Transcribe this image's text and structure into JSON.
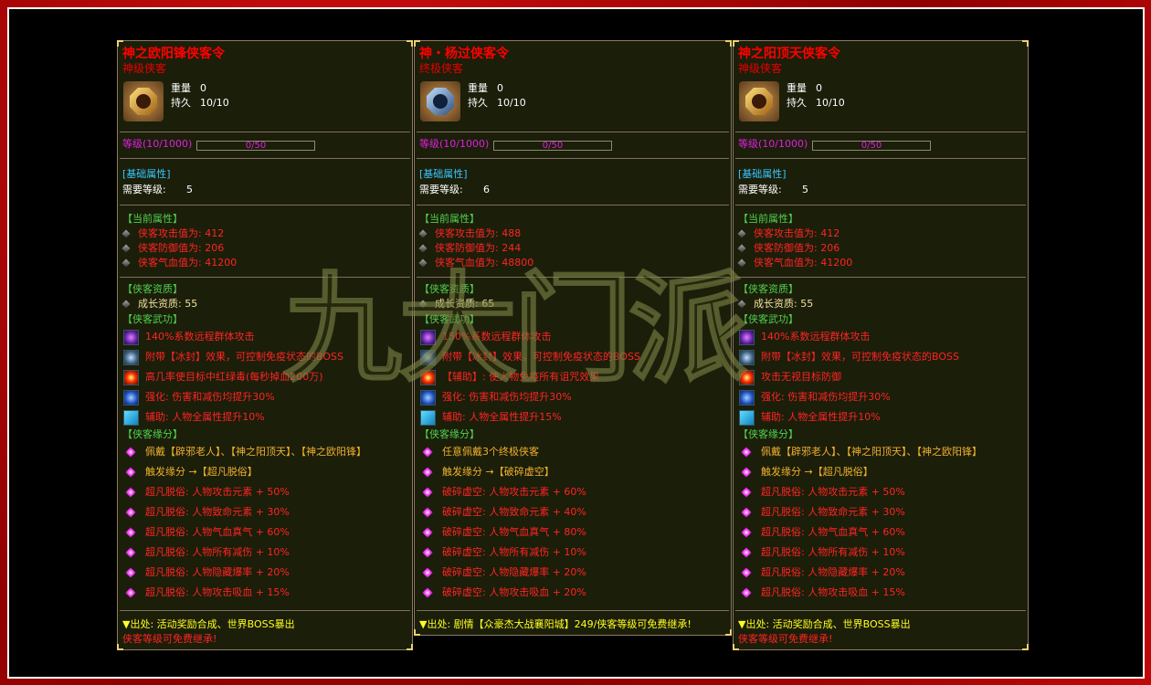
{
  "watermark": "九大门派",
  "colors": {
    "frame": "#b00000",
    "card_bg": "#1b1e09",
    "title": "#ff0000",
    "level": "#e020e0",
    "section_base": "#38c8ff",
    "section": "#50d050",
    "attr": "#ff2424",
    "source": "#ffff20"
  },
  "cards": [
    {
      "title": "神之欧阳锋侠客令",
      "subtitle": "神级侠客",
      "icon": "gold-octagon-token-icon",
      "weight_label": "重量",
      "weight": "0",
      "durability_label": "持久",
      "durability": "10/10",
      "level_label": "等级(10/1000)",
      "level_bar": "0/50",
      "level_progress": 0,
      "base_header": "[基础属性]",
      "req_label": "需要等级:",
      "req_value": "5",
      "current_header": "【当前属性】",
      "attrs": [
        "侠客攻击值为: 412",
        "侠客防御值为: 206",
        "侠客气血值为: 41200"
      ],
      "quality_header": "【侠客资质】",
      "growth": "成长资质: 55",
      "skills_header": "【侠客武功】",
      "skills": [
        {
          "icon": "purple-vortex-icon",
          "text": "140%系数远程群体攻击"
        },
        {
          "icon": "ice-swirl-icon",
          "text": "附带【冰封】效果，可控制免疫状态的BOSS"
        },
        {
          "icon": "red-burst-icon",
          "text": "高几率使目标中红绿毒(每秒掉血200万)"
        },
        {
          "icon": "blue-orbs-icon",
          "text": "强化: 伤害和减伤均提升30%"
        },
        {
          "icon": "cyan-figure-icon",
          "text": "辅助: 人物全属性提升10%"
        }
      ],
      "fate_header": "【侠客缘分】",
      "fate_req": "佩戴【辟邪老人】、【神之阳顶天】、【神之欧阳锋】",
      "fate_trigger": "触发缘分 →【超凡脱俗】",
      "fate_bonuses": [
        "超凡脱俗: 人物攻击元素 + 50%",
        "超凡脱俗: 人物致命元素 + 30%",
        "超凡脱俗: 人物气血真气 + 60%",
        "超凡脱俗: 人物所有减伤 + 10%",
        "超凡脱俗: 人物隐藏爆率 + 20%",
        "超凡脱俗: 人物攻击吸血 + 15%"
      ],
      "source": "▼出处: 活动奖励合成、世界BOSS暴出",
      "note": "侠客等级可免费继承!"
    },
    {
      "title": "神・杨过侠客令",
      "subtitle": "终极侠客",
      "icon": "blue-octagon-token-icon",
      "weight_label": "重量",
      "weight": "0",
      "durability_label": "持久",
      "durability": "10/10",
      "level_label": "等级(10/1000)",
      "level_bar": "0/50",
      "level_progress": 0,
      "base_header": "[基础属性]",
      "req_label": "需要等级:",
      "req_value": "6",
      "current_header": "【当前属性】",
      "attrs": [
        "侠客攻击值为: 488",
        "侠客防御值为: 244",
        "侠客气血值为: 48800"
      ],
      "quality_header": "【侠客资质】",
      "growth": "成长资质: 65",
      "skills_header": "【侠客武功】",
      "skills": [
        {
          "icon": "purple-vortex-icon",
          "text": "150%系数远程群体攻击"
        },
        {
          "icon": "ice-swirl-icon",
          "text": "附带【冰封】效果，可控制免疫状态的BOSS"
        },
        {
          "icon": "red-burst-icon",
          "text": "【辅助】: 使人物免疫所有诅咒效果"
        },
        {
          "icon": "blue-orbs-icon",
          "text": "强化: 伤害和减伤均提升30%"
        },
        {
          "icon": "cyan-figure-icon",
          "text": "辅助: 人物全属性提升15%"
        }
      ],
      "fate_header": "【侠客缘分】",
      "fate_req": "任意佩戴3个终极侠客",
      "fate_trigger": "触发缘分 →【破碎虚空】",
      "fate_bonuses": [
        "破碎虚空: 人物攻击元素 + 60%",
        "破碎虚空: 人物致命元素 + 40%",
        "破碎虚空: 人物气血真气 + 80%",
        "破碎虚空: 人物所有减伤 + 10%",
        "破碎虚空: 人物隐藏爆率 + 20%",
        "破碎虚空: 人物攻击吸血 + 20%"
      ],
      "source": "▼出处: 剧情【众豪杰大战襄阳城】249/侠客等级可免费继承!",
      "note": ""
    },
    {
      "title": "神之阳顶天侠客令",
      "subtitle": "神级侠客",
      "icon": "gold-octagon-token-icon",
      "weight_label": "重量",
      "weight": "0",
      "durability_label": "持久",
      "durability": "10/10",
      "level_label": "等级(10/1000)",
      "level_bar": "0/50",
      "level_progress": 0,
      "base_header": "[基础属性]",
      "req_label": "需要等级:",
      "req_value": "5",
      "current_header": "【当前属性】",
      "attrs": [
        "侠客攻击值为: 412",
        "侠客防御值为: 206",
        "侠客气血值为: 41200"
      ],
      "quality_header": "【侠客资质】",
      "growth": "成长资质: 55",
      "skills_header": "【侠客武功】",
      "skills": [
        {
          "icon": "purple-vortex-icon",
          "text": "140%系数远程群体攻击"
        },
        {
          "icon": "ice-swirl-icon",
          "text": "附带【冰封】效果，可控制免疫状态的BOSS"
        },
        {
          "icon": "red-burst-icon",
          "text": "攻击无视目标防御"
        },
        {
          "icon": "blue-orbs-icon",
          "text": "强化: 伤害和减伤均提升30%"
        },
        {
          "icon": "cyan-figure-icon",
          "text": "辅助: 人物全属性提升10%"
        }
      ],
      "fate_header": "【侠客缘分】",
      "fate_req": "佩戴【辟邪老人】、【神之阳顶天】、【神之欧阳锋】",
      "fate_trigger": "触发缘分 →【超凡脱俗】",
      "fate_bonuses": [
        "超凡脱俗: 人物攻击元素 + 50%",
        "超凡脱俗: 人物致命元素 + 30%",
        "超凡脱俗: 人物气血真气 + 60%",
        "超凡脱俗: 人物所有减伤 + 10%",
        "超凡脱俗: 人物隐藏爆率 + 20%",
        "超凡脱俗: 人物攻击吸血 + 15%"
      ],
      "source": "▼出处: 活动奖励合成、世界BOSS暴出",
      "note": "侠客等级可免费继承!"
    }
  ]
}
